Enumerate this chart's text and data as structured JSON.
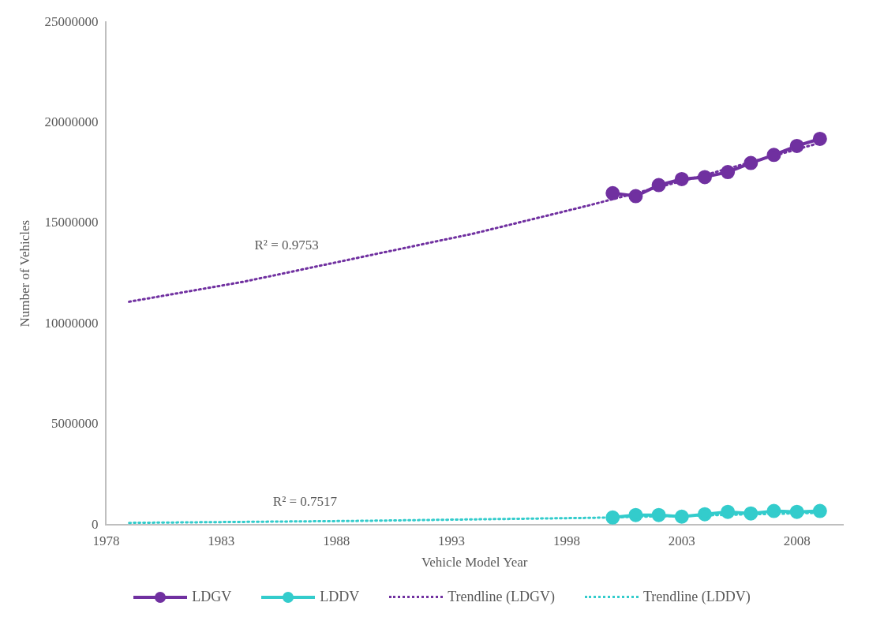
{
  "chart_data": {
    "type": "line",
    "xlabel": "Vehicle Model Year",
    "ylabel": "Number of Vehicles",
    "xlim": [
      1978,
      2010
    ],
    "xticks": [
      1978,
      1983,
      1988,
      1993,
      1998,
      2003,
      2008
    ],
    "ylim": [
      0,
      25000000
    ],
    "yticks": [
      0,
      5000000,
      10000000,
      15000000,
      20000000,
      25000000
    ],
    "grid": false,
    "legend": "bottom",
    "series": [
      {
        "name": "LDGV",
        "color": "#7030a0",
        "marker": "circle",
        "line_style": "solid",
        "x": [
          2000,
          2001,
          2002,
          2003,
          2004,
          2005,
          2006,
          2007,
          2008,
          2009
        ],
        "values": [
          16500000,
          16350000,
          16900000,
          17200000,
          17300000,
          17550000,
          18000000,
          18400000,
          18850000,
          19200000
        ]
      },
      {
        "name": "LDDV",
        "color": "#33cccc",
        "marker": "circle",
        "line_style": "solid",
        "x": [
          2000,
          2001,
          2002,
          2003,
          2004,
          2005,
          2006,
          2007,
          2008,
          2009
        ],
        "values": [
          370000,
          490000,
          490000,
          410000,
          530000,
          650000,
          570000,
          690000,
          650000,
          690000
        ]
      },
      {
        "name": "Trendline (LDGV)",
        "color": "#7030a0",
        "marker": "none",
        "line_style": "dotted",
        "x": [
          1979,
          1984,
          1989,
          1994,
          1999,
          2004,
          2009
        ],
        "values": [
          11100000,
          12100000,
          13300000,
          14500000,
          15900000,
          17400000,
          19000000
        ]
      },
      {
        "name": "Trendline (LDDV)",
        "color": "#33cccc",
        "marker": "none",
        "line_style": "dotted",
        "x": [
          1979,
          1989,
          1999,
          2009
        ],
        "values": [
          100000,
          200000,
          350000,
          600000
        ]
      }
    ],
    "annotations": [
      "R² = 0.9753",
      "R² = 0.7517"
    ]
  }
}
